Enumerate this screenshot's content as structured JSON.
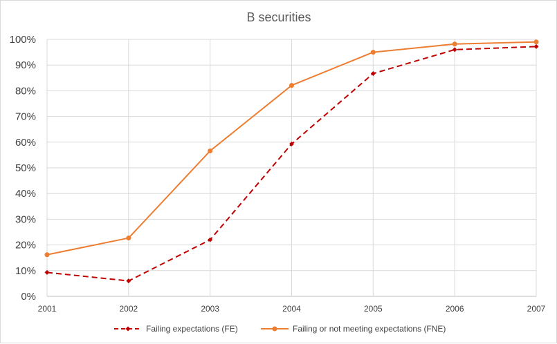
{
  "chart_data": {
    "type": "line",
    "title": "B securities",
    "xlabel": "",
    "ylabel": "",
    "x": [
      "2001",
      "2002",
      "2003",
      "2004",
      "2005",
      "2006",
      "2007"
    ],
    "ylim": [
      0,
      100
    ],
    "yticks": [
      0,
      10,
      20,
      30,
      40,
      50,
      60,
      70,
      80,
      90,
      100
    ],
    "ytick_labels": [
      "0%",
      "10%",
      "20%",
      "30%",
      "40%",
      "50%",
      "60%",
      "70%",
      "80%",
      "90%",
      "100%"
    ],
    "grid": true,
    "legend_position": "bottom",
    "series": [
      {
        "name": "Failing expectations (FE)",
        "color": "#c00000",
        "line_style": "dashed",
        "marker": "diamond",
        "values": [
          9.3,
          6.0,
          22.0,
          59.3,
          86.7,
          96.0,
          97.2
        ]
      },
      {
        "name": "Failing or not meeting expectations (FNE)",
        "color": "#ed7d31",
        "line_style": "solid",
        "marker": "circle",
        "values": [
          16.2,
          22.7,
          56.6,
          82.1,
          95.0,
          98.2,
          99.0
        ]
      }
    ]
  }
}
